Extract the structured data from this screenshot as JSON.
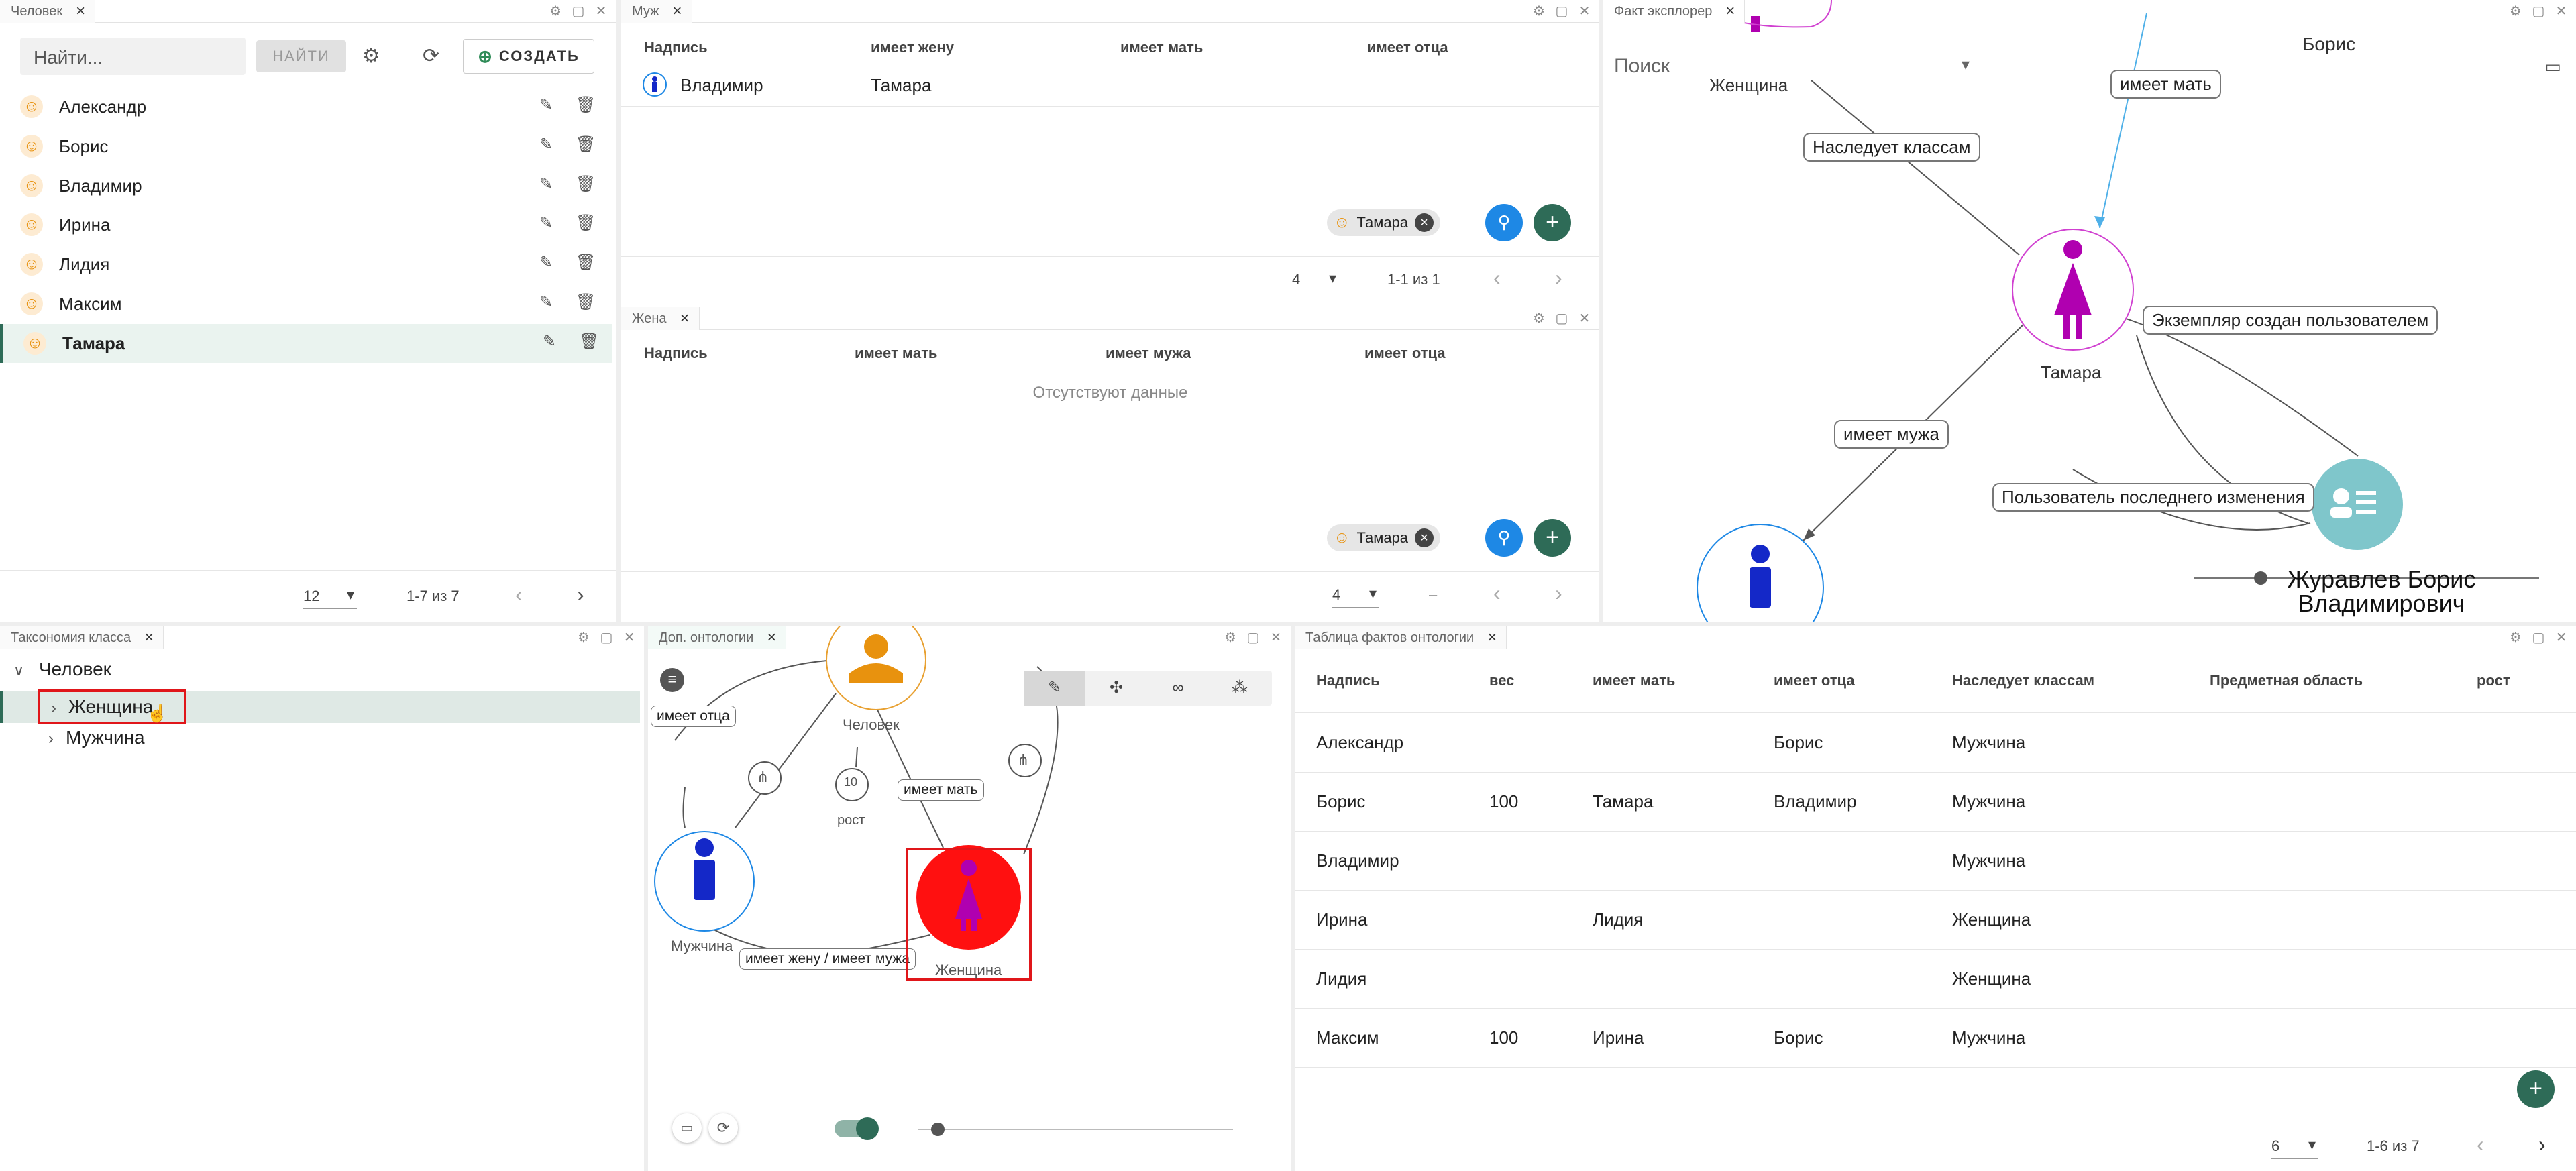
{
  "colors": {
    "accent": "#2e6b57",
    "blue_fab": "#1e88e5",
    "woman": "#b000b0",
    "man": "#1428c8",
    "person": "#e8920e",
    "highlight_red": "#e0161a"
  },
  "person_panel": {
    "tab": "Человек",
    "search_placeholder": "Найти...",
    "find_label": "НАЙТИ",
    "create_label": "СОЗДАТЬ",
    "items": [
      {
        "label": "Александр"
      },
      {
        "label": "Борис"
      },
      {
        "label": "Владимир"
      },
      {
        "label": "Ирина"
      },
      {
        "label": "Лидия"
      },
      {
        "label": "Максим"
      },
      {
        "label": "Тамара"
      }
    ],
    "page_size": "12",
    "range": "1-7 из 7"
  },
  "husband_panel": {
    "tab": "Муж",
    "columns": [
      "Надпись",
      "имеет жену",
      "имеет мать",
      "имеет отца"
    ],
    "rows": [
      {
        "label": "Владимир",
        "wife": "Тамара"
      }
    ],
    "chip": "Тамара",
    "page_size": "4",
    "range": "1-1 из 1"
  },
  "wife_panel": {
    "tab": "Жена",
    "columns": [
      "Надпись",
      "имеет мать",
      "имеет мужа",
      "имеет отца"
    ],
    "empty": "Отсутствуют данные",
    "chip": "Тамара",
    "page_size": "4",
    "range": "–"
  },
  "explorer_panel": {
    "tab": "Факт эксплорер",
    "search_placeholder": "Поиск",
    "node_boris": "Борис",
    "node_woman": "Женщина",
    "node_tamara": "Тамара",
    "node_user": "Журавлев Борис Владимирович",
    "edges": [
      "имеет мать",
      "Наследует классам",
      "Экземпляр создан пользователем",
      "имеет мужа",
      "Пользователь последнего изменения"
    ]
  },
  "taxonomy_panel": {
    "tab": "Таксономия класса",
    "root": "Человек",
    "children": [
      "Женщина",
      "Мужчина"
    ]
  },
  "ontology_panel": {
    "tab": "Доп. онтологии",
    "nodes": {
      "person": "Человек",
      "man": "Мужчина",
      "woman": "Женщина",
      "height": "рост"
    },
    "edges": [
      "имеет отца",
      "имеет мать",
      "имеет жену / имеет мужа"
    ]
  },
  "facts_panel": {
    "tab": "Таблица фактов онтологии",
    "columns": [
      "Надпись",
      "вес",
      "имеет мать",
      "имеет отца",
      "Наследует классам",
      "Предметная область",
      "рост"
    ],
    "rows": [
      [
        "Александр",
        "",
        "",
        "Борис",
        "Мужчина",
        "",
        ""
      ],
      [
        "Борис",
        "100",
        "Тамара",
        "Владимир",
        "Мужчина",
        "",
        ""
      ],
      [
        "Владимир",
        "",
        "",
        "",
        "Мужчина",
        "",
        ""
      ],
      [
        "Ирина",
        "",
        "Лидия",
        "",
        "Женщина",
        "",
        ""
      ],
      [
        "Лидия",
        "",
        "",
        "",
        "Женщина",
        "",
        ""
      ],
      [
        "Максим",
        "100",
        "Ирина",
        "Борис",
        "Мужчина",
        "",
        ""
      ]
    ],
    "page_size": "6",
    "range": "1-6 из 7"
  }
}
